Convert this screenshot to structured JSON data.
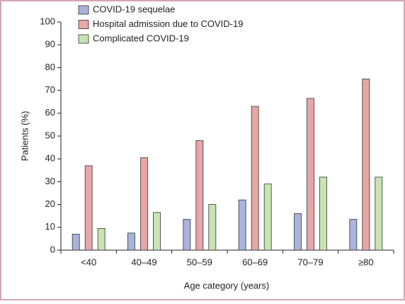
{
  "chart_data": {
    "type": "bar",
    "x_label": "Age category (years)",
    "y_label": "Patients (%)",
    "categories": [
      "<40",
      "40–49",
      "50–59",
      "60–69",
      "70–79",
      "≥80"
    ],
    "series": [
      {
        "name": "COVID-19 sequelae",
        "color": "#a9b3dc",
        "values": [
          7,
          7.5,
          13.5,
          22,
          16,
          13.5
        ]
      },
      {
        "name": "Hospital admission due to COVID-19",
        "color": "#e9a6a6",
        "values": [
          37,
          40.5,
          48,
          63,
          66.5,
          75
        ]
      },
      {
        "name": "Complicated COVID-19",
        "color": "#c8e4b2",
        "values": [
          9.5,
          16.5,
          20,
          29,
          32,
          32
        ]
      }
    ],
    "ylim": [
      0,
      100
    ],
    "yticks": [
      0,
      10,
      20,
      30,
      40,
      50,
      60,
      70,
      80,
      90,
      100
    ],
    "grid": false,
    "legend": "top-left"
  }
}
